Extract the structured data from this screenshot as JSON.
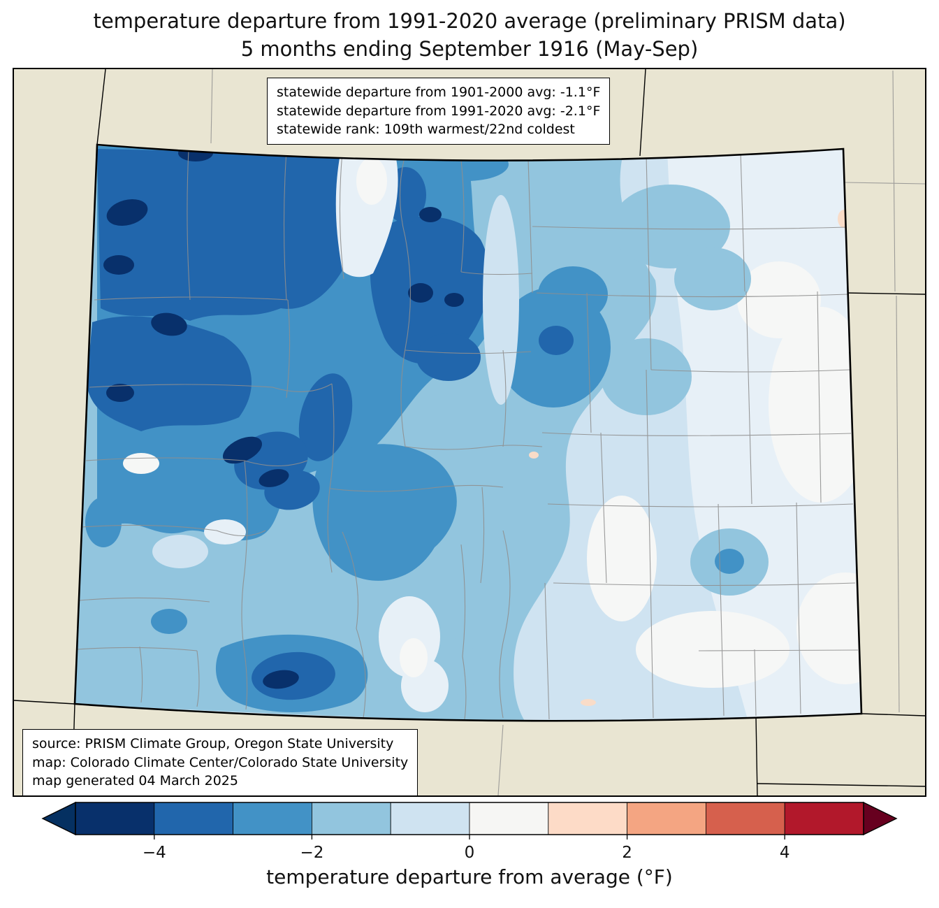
{
  "title": {
    "line1": "temperature departure from 1991-2020 average (preliminary PRISM data)",
    "line2": "5 months ending September 1916 (May-Sep)"
  },
  "stats_box": {
    "line1": "statewide departure from 1901-2000 avg: -1.1°F",
    "line2": "statewide departure from 1991-2020 avg: -2.1°F",
    "line3": "statewide rank: 109th warmest/22nd coldest"
  },
  "source_box": {
    "line1": "source: PRISM Climate Group, Oregon State University",
    "line2": "map: Colorado Climate Center/Colorado State University",
    "line3": "map generated 04 March 2025"
  },
  "colorbar": {
    "label": "temperature departure from average (°F)",
    "ticks": [
      "−4",
      "−2",
      "0",
      "2",
      "4"
    ],
    "tick_values": [
      -4,
      -2,
      0,
      2,
      4
    ],
    "range": [
      -5,
      5
    ],
    "segment_colors": [
      "#08306b",
      "#2166ac",
      "#4292c6",
      "#92c5de",
      "#cfe3f1",
      "#f6f6f4",
      "#fddbc7",
      "#f4a582",
      "#d6604d",
      "#b2182b"
    ],
    "left_arrow_color": "#053061",
    "right_arrow_color": "#67001f"
  },
  "map": {
    "region": "Colorado",
    "palette": {
      "land": "#e9e5d2",
      "state_border": "#000000",
      "county_line": "#8f8f8f",
      "level_m5": "#08306b",
      "level_m4": "#2166ac",
      "level_m3": "#4292c6",
      "level_m2": "#92c5de",
      "level_m1": "#cfe3f1",
      "level_0": "#e7f0f7",
      "level_white": "#f6f7f6",
      "level_warm": "#f9dcc8"
    }
  }
}
